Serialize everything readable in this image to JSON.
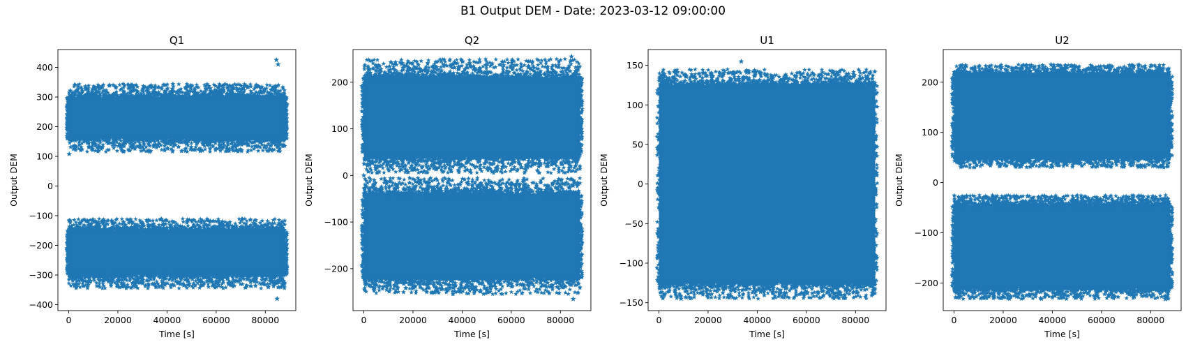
{
  "figure": {
    "suptitle": "B1 Output DEM - Date: 2023-03-12 09:00:00",
    "marker_color": "#1f77b4"
  },
  "chart_data": [
    {
      "type": "scatter",
      "title": "Q1",
      "xlabel": "Time [s]",
      "ylabel": "Output DEM",
      "xlim": [
        -4400,
        92400
      ],
      "ylim": [
        -420,
        460
      ],
      "xticks": [
        0,
        20000,
        40000,
        60000,
        80000
      ],
      "yticks": [
        -400,
        -300,
        -200,
        -100,
        0,
        100,
        200,
        300,
        400
      ],
      "marker": "star",
      "x_range": [
        0,
        88000
      ],
      "bands": [
        {
          "core": [
            160,
            300
          ],
          "outer": [
            115,
            345
          ]
        },
        {
          "core": [
            -300,
            -150
          ],
          "outer": [
            -345,
            -110
          ]
        }
      ],
      "outliers": [
        [
          84500,
          425
        ],
        [
          85200,
          410
        ],
        [
          84800,
          -380
        ],
        [
          86000,
          140
        ],
        [
          53500,
          118
        ],
        [
          200,
          108
        ]
      ]
    },
    {
      "type": "scatter",
      "title": "Q2",
      "xlabel": "Time [s]",
      "ylabel": "Output DEM",
      "xlim": [
        -4400,
        92400
      ],
      "ylim": [
        -290,
        270
      ],
      "xticks": [
        0,
        20000,
        40000,
        60000,
        80000
      ],
      "yticks": [
        -200,
        -100,
        0,
        100,
        200
      ],
      "marker": "star",
      "x_range": [
        0,
        88000
      ],
      "bands": [
        {
          "core": [
            40,
            210
          ],
          "outer": [
            5,
            250
          ]
        },
        {
          "core": [
            -220,
            -40
          ],
          "outer": [
            -255,
            -5
          ]
        }
      ],
      "outliers": [
        [
          84500,
          255
        ],
        [
          85200,
          -265
        ],
        [
          39500,
          -250
        ],
        [
          45000,
          -245
        ],
        [
          86500,
          28
        ],
        [
          0,
          0
        ]
      ]
    },
    {
      "type": "scatter",
      "title": "U1",
      "xlabel": "Time [s]",
      "ylabel": "Output DEM",
      "xlim": [
        -4400,
        92400
      ],
      "ylim": [
        -160,
        170
      ],
      "xticks": [
        0,
        20000,
        40000,
        60000,
        80000
      ],
      "yticks": [
        -150,
        -100,
        -50,
        0,
        50,
        100,
        150
      ],
      "marker": "star",
      "x_range": [
        0,
        88000
      ],
      "bands": [
        {
          "core": [
            -125,
            125
          ],
          "outer": [
            -145,
            145
          ]
        }
      ],
      "outliers": [
        [
          33500,
          155
        ],
        [
          9000,
          -145
        ],
        [
          1500,
          138
        ],
        [
          86000,
          140
        ]
      ]
    },
    {
      "type": "scatter",
      "title": "U2",
      "xlabel": "Time [s]",
      "ylabel": "Output DEM",
      "xlim": [
        -4400,
        92400
      ],
      "ylim": [
        -255,
        265
      ],
      "xticks": [
        0,
        20000,
        40000,
        60000,
        80000
      ],
      "yticks": [
        -200,
        -100,
        0,
        100,
        200
      ],
      "marker": "star",
      "x_range": [
        0,
        88000
      ],
      "bands": [
        {
          "core": [
            50,
            215
          ],
          "outer": [
            30,
            235
          ]
        },
        {
          "core": [
            -210,
            -45
          ],
          "outer": [
            -232,
            -25
          ]
        }
      ],
      "outliers": [
        [
          39500,
          235
        ],
        [
          45500,
          232
        ],
        [
          79000,
          -28
        ],
        [
          16500,
          -33
        ],
        [
          86000,
          -232
        ]
      ]
    }
  ]
}
